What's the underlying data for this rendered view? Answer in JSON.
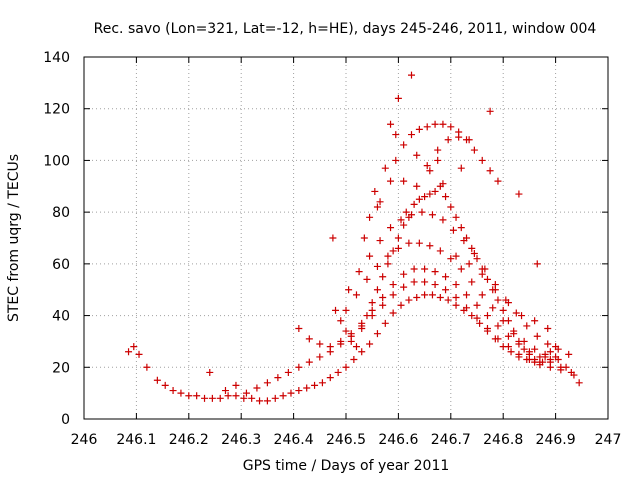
{
  "chart_data": {
    "type": "scatter",
    "title": "Rec. savo (Lon=321, Lat=-12, h=HE), days 245-246, 2011, window 004",
    "xlabel": "GPS time / Days of year 2011",
    "ylabel": "STEC from uqrg / TECUs",
    "xlim": [
      246,
      247
    ],
    "ylim": [
      0,
      140
    ],
    "xticks": [
      "246",
      "246.1",
      "246.2",
      "246.3",
      "246.4",
      "246.5",
      "246.6",
      "246.7",
      "246.8",
      "246.9",
      "247"
    ],
    "yticks": [
      "0",
      "20",
      "40",
      "60",
      "80",
      "100",
      "120",
      "140"
    ],
    "grid": true,
    "marker": "+",
    "color": "#cc0000",
    "series": [
      {
        "x": [
          246.085,
          246.095,
          246.105,
          246.12,
          246.14,
          246.155,
          246.17,
          246.185,
          246.2,
          246.215,
          246.23,
          246.245,
          246.26,
          246.275,
          246.29,
          246.305,
          246.32,
          246.335,
          246.35,
          246.365,
          246.38,
          246.395,
          246.41,
          246.425,
          246.44,
          246.455,
          246.47,
          246.485,
          246.5,
          246.515,
          246.53,
          246.545,
          246.56,
          246.575,
          246.59,
          246.605,
          246.62,
          246.635,
          246.65,
          246.665,
          246.68,
          246.695,
          246.71,
          246.725,
          246.74,
          246.755,
          246.77,
          246.785,
          246.8,
          246.815,
          246.83,
          246.845,
          246.86,
          246.875,
          246.89,
          246.905,
          246.92,
          246.935,
          246.945,
          246.24,
          246.27,
          246.29,
          246.31,
          246.33,
          246.35,
          246.37,
          246.39,
          246.41,
          246.43,
          246.45,
          246.47,
          246.49,
          246.51,
          246.53,
          246.55,
          246.57,
          246.59,
          246.61,
          246.63,
          246.65,
          246.67,
          246.69,
          246.71,
          246.73,
          246.75,
          246.77,
          246.79,
          246.81,
          246.83,
          246.85,
          246.87,
          246.89,
          246.91,
          246.93,
          246.41,
          246.43,
          246.45,
          246.47,
          246.49,
          246.51,
          246.53,
          246.55,
          246.57,
          246.59,
          246.61,
          246.63,
          246.65,
          246.67,
          246.69,
          246.71,
          246.73,
          246.75,
          246.77,
          246.79,
          246.81,
          246.83,
          246.85,
          246.87,
          246.89,
          246.91,
          246.5,
          246.52,
          246.54,
          246.56,
          246.58,
          246.6,
          246.62,
          246.64,
          246.66,
          246.68,
          246.7,
          246.72,
          246.74,
          246.76,
          246.78,
          246.8,
          246.82,
          246.84,
          246.86,
          246.88,
          246.9,
          246.505,
          246.525,
          246.545,
          246.565,
          246.585,
          246.605,
          246.625,
          246.645,
          246.665,
          246.685,
          246.705,
          246.725,
          246.745,
          246.765,
          246.785,
          246.805,
          246.825,
          246.845,
          246.865,
          246.885,
          246.905,
          246.925,
          246.565,
          246.585,
          246.595,
          246.61,
          246.625,
          246.64,
          246.655,
          246.67,
          246.685,
          246.7,
          246.715,
          246.73,
          246.745,
          246.76,
          246.775,
          246.79,
          246.555,
          246.575,
          246.595,
          246.615,
          246.635,
          246.655,
          246.675,
          246.695,
          246.715,
          246.735,
          246.48,
          246.49,
          246.5,
          246.51,
          246.52,
          246.53,
          246.54,
          246.55,
          246.56,
          246.57,
          246.58,
          246.59,
          246.6,
          246.61,
          246.62,
          246.63,
          246.64,
          246.65,
          246.66,
          246.67,
          246.68,
          246.69,
          246.7,
          246.71,
          246.72,
          246.73,
          246.74,
          246.75,
          246.76,
          246.77,
          246.78,
          246.79,
          246.8,
          246.81,
          246.82,
          246.83,
          246.84,
          246.85,
          246.86,
          246.87,
          246.88,
          246.89,
          246.9,
          246.535,
          246.56,
          246.585,
          246.61,
          246.635,
          246.66,
          246.685,
          246.71,
          246.735,
          246.76,
          246.785,
          246.81,
          246.835,
          246.86,
          246.885,
          246.475,
          246.545,
          246.6,
          246.625,
          246.675,
          246.72,
          246.775,
          246.83,
          246.865
        ],
        "y": [
          26,
          28,
          25,
          20,
          15,
          13,
          11,
          10,
          9,
          9,
          8,
          8,
          8,
          9,
          9,
          8,
          8,
          7,
          7,
          8,
          9,
          10,
          11,
          12,
          13,
          14,
          16,
          18,
          20,
          23,
          26,
          29,
          33,
          37,
          41,
          44,
          46,
          47,
          48,
          48,
          47,
          46,
          44,
          42,
          40,
          37,
          34,
          31,
          28,
          26,
          24,
          23,
          22,
          22,
          23,
          23,
          20,
          17,
          14,
          18,
          11,
          13,
          10,
          12,
          14,
          16,
          18,
          20,
          22,
          24,
          26,
          29,
          32,
          36,
          40,
          44,
          48,
          51,
          53,
          53,
          52,
          50,
          47,
          43,
          39,
          35,
          31,
          28,
          25,
          23,
          21,
          20,
          19,
          18,
          35,
          31,
          29,
          28,
          30,
          33,
          37,
          42,
          47,
          52,
          56,
          58,
          58,
          57,
          55,
          52,
          48,
          44,
          40,
          36,
          32,
          29,
          26,
          24,
          22,
          20,
          42,
          48,
          54,
          59,
          63,
          66,
          68,
          68,
          67,
          65,
          62,
          58,
          53,
          48,
          43,
          38,
          33,
          30,
          27,
          25,
          24,
          50,
          57,
          63,
          69,
          74,
          77,
          79,
          80,
          79,
          77,
          73,
          69,
          64,
          58,
          52,
          46,
          41,
          36,
          32,
          29,
          27,
          25,
          84,
          92,
          100,
          106,
          110,
          112,
          113,
          114,
          114,
          113,
          111,
          108,
          104,
          100,
          96,
          92,
          88,
          97,
          110,
          80,
          90,
          98,
          104,
          108,
          109,
          108,
          42,
          38,
          34,
          30,
          28,
          35,
          40,
          45,
          50,
          55,
          60,
          65,
          70,
          75,
          78,
          83,
          85,
          86,
          87,
          88,
          90,
          86,
          82,
          78,
          74,
          70,
          66,
          62,
          58,
          54,
          50,
          46,
          42,
          38,
          34,
          30,
          27,
          25,
          23,
          22,
          24,
          26,
          28,
          70,
          82,
          114,
          92,
          102,
          96,
          91,
          63,
          60,
          56,
          50,
          45,
          40,
          38,
          35,
          70,
          78,
          124,
          133,
          100,
          97,
          119,
          87,
          60
        ]
      }
    ]
  }
}
